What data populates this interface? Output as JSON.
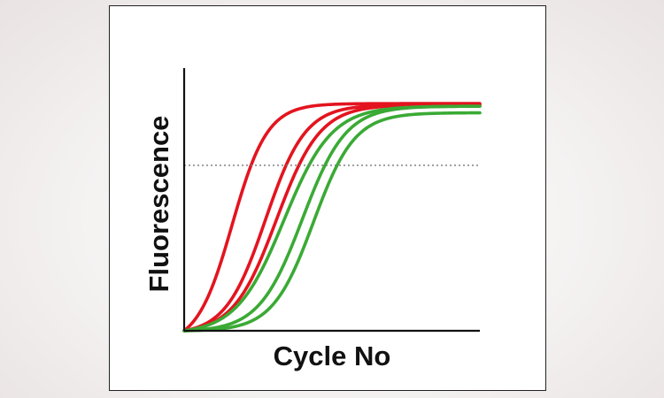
{
  "chart_data": {
    "type": "line",
    "title": "",
    "xlabel": "Cycle No",
    "ylabel": "Fluorescence",
    "xlim": [
      0,
      40
    ],
    "ylim": [
      0,
      1
    ],
    "grid": false,
    "threshold": {
      "y": 0.63,
      "style": "dotted",
      "color": "#777777"
    },
    "series": [
      {
        "color": "#e3141f",
        "x0": 6.5,
        "k": 0.42,
        "max": 0.865
      },
      {
        "color": "#e3141f",
        "x0": 11.0,
        "k": 0.37,
        "max": 0.86
      },
      {
        "color": "#e3141f",
        "x0": 12.5,
        "k": 0.34,
        "max": 0.86
      },
      {
        "color": "#3aaa35",
        "x0": 13.5,
        "k": 0.31,
        "max": 0.855
      },
      {
        "color": "#3aaa35",
        "x0": 16.0,
        "k": 0.34,
        "max": 0.855
      },
      {
        "color": "#3aaa35",
        "x0": 17.5,
        "k": 0.36,
        "max": 0.83
      }
    ]
  }
}
